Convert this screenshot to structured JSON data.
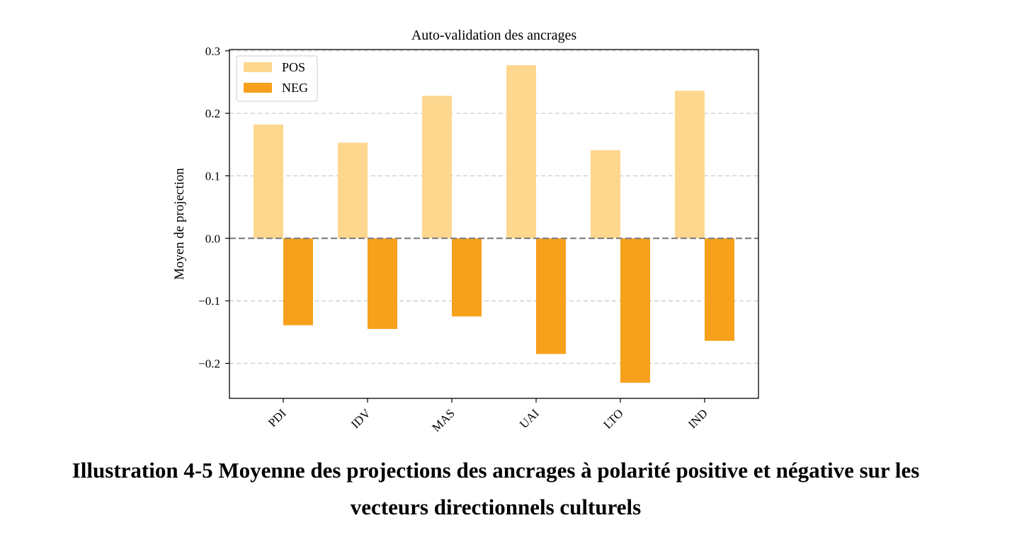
{
  "chart_data": {
    "type": "bar",
    "title": "Auto-validation des ancrages",
    "xlabel": "",
    "ylabel": "Moyen de projection",
    "categories": [
      "PDI",
      "IDV",
      "MAS",
      "UAI",
      "LTO",
      "IND"
    ],
    "series": [
      {
        "name": "POS",
        "values": [
          0.182,
          0.153,
          0.228,
          0.277,
          0.141,
          0.236
        ],
        "color": "#fdd78e"
      },
      {
        "name": "NEG",
        "values": [
          -0.139,
          -0.145,
          -0.125,
          -0.185,
          -0.231,
          -0.164
        ],
        "color": "#f7a01b"
      }
    ],
    "ylim": [
      -0.256,
      0.302
    ],
    "yticks": [
      0.3,
      0.2,
      0.1,
      0.0,
      -0.1,
      -0.2
    ],
    "ytick_labels": [
      "0.3",
      "0.2",
      "0.1",
      "0.0",
      "−0.1",
      "−0.2"
    ],
    "grid": "y-dashed",
    "zero_line": "dashed-gray",
    "legend_position": "upper-left"
  },
  "caption": {
    "line1": "Illustration 4-5 Moyenne des projections des ancrages à polarité positive et négative sur les",
    "line2": "vecteurs directionnels culturels"
  }
}
